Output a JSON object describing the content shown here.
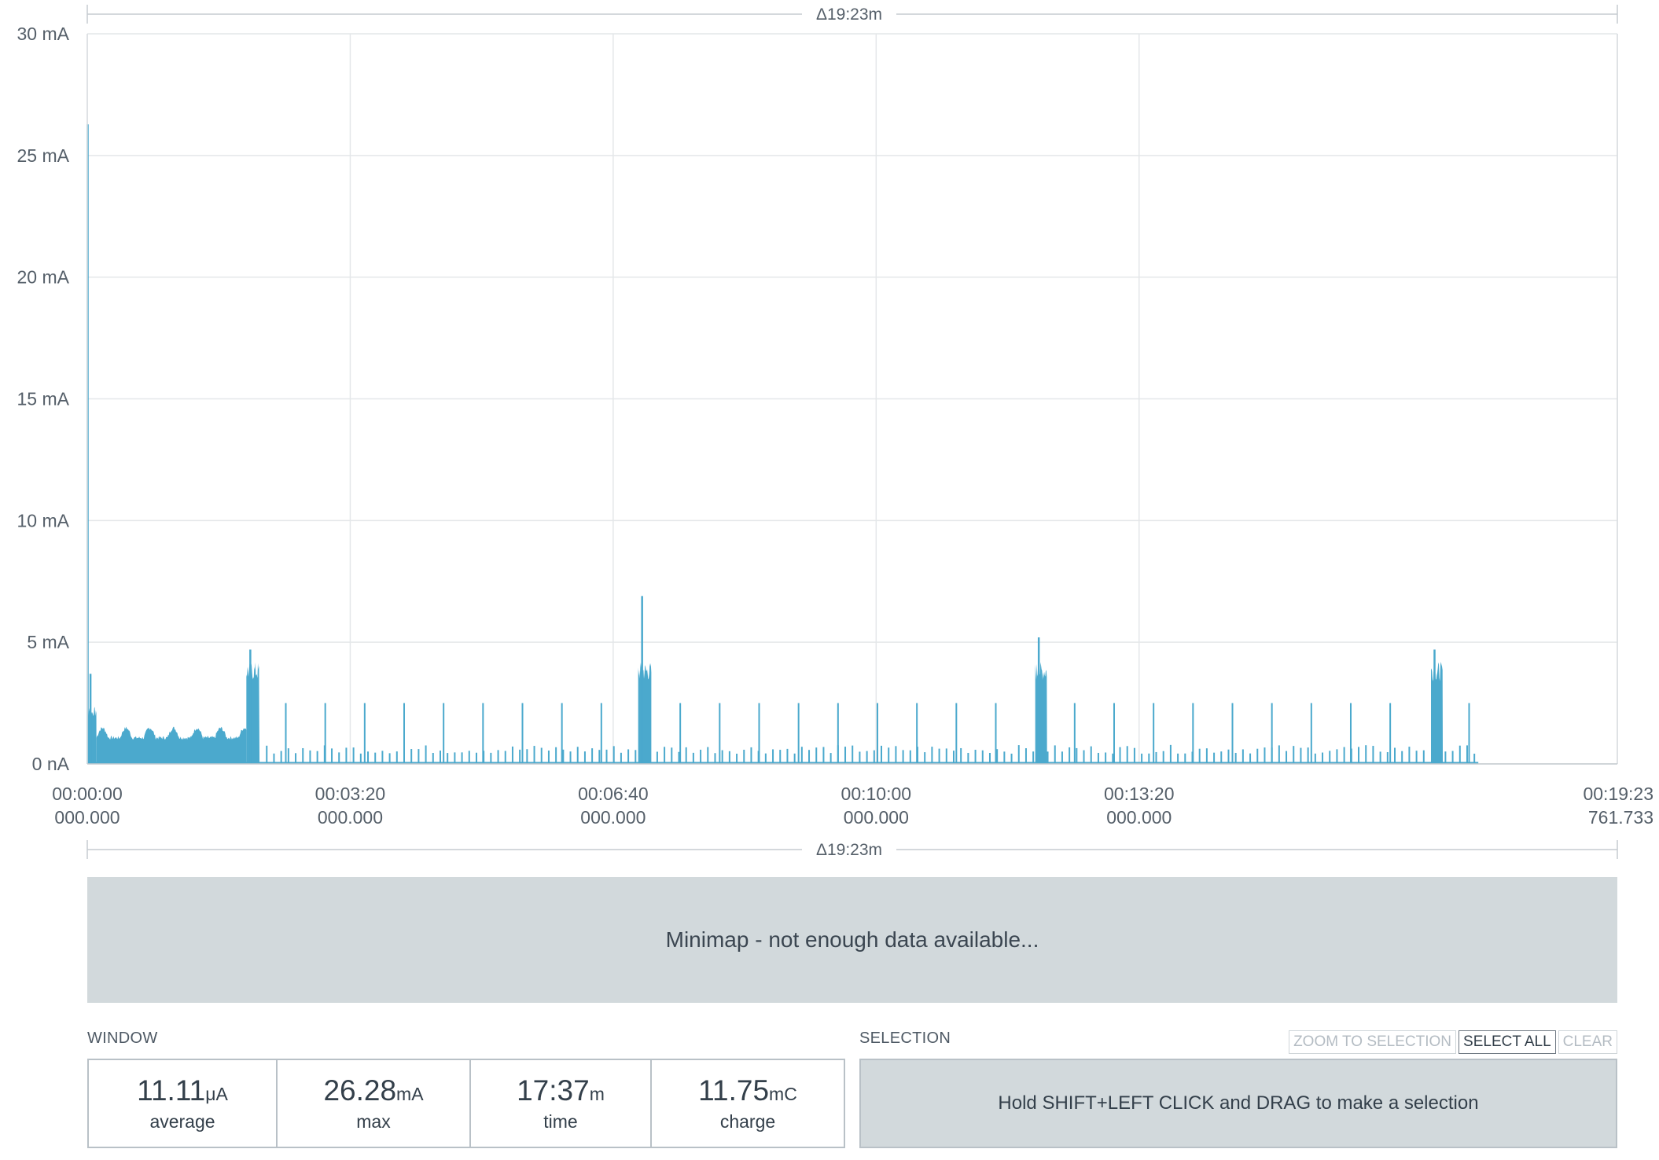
{
  "chart_data": {
    "type": "area",
    "color": "#4ba9cd",
    "y_unit": "mA",
    "ylim": [
      0,
      30
    ],
    "yticks": [
      "0 nA",
      "5 mA",
      "10 mA",
      "15 mA",
      "20 mA",
      "25 mA",
      "30 mA"
    ],
    "xlim_seconds": [
      0,
      1163.733
    ],
    "xticks": [
      {
        "t": 0,
        "time": "00:00:00",
        "ms": "000.000"
      },
      {
        "t": 200,
        "time": "00:03:20",
        "ms": "000.000"
      },
      {
        "t": 400,
        "time": "00:06:40",
        "ms": "000.000"
      },
      {
        "t": 600,
        "time": "00:10:00",
        "ms": "000.000"
      },
      {
        "t": 800,
        "time": "00:13:20",
        "ms": "000.000"
      },
      {
        "t": 1163.733,
        "time": "00:19:23",
        "ms": "761.733"
      }
    ],
    "delta_label": "Δ19:23m",
    "grid": true,
    "bursts": [
      {
        "t0": 0.5,
        "t1": 7,
        "level": 2.3,
        "peak": 3.7
      },
      {
        "t0": 121,
        "t1": 131,
        "level": 4.0,
        "peak": 4.7
      },
      {
        "t0": 419,
        "t1": 429,
        "level": 4.0,
        "peak": 6.9
      },
      {
        "t0": 721,
        "t1": 730,
        "level": 4.0,
        "peak": 5.2
      },
      {
        "t0": 1022,
        "t1": 1031,
        "level": 4.0,
        "peak": 4.7
      }
    ],
    "initial_spike": {
      "t": 0.3,
      "value": 26.28
    },
    "idle_band": {
      "t0": 7,
      "t1": 121,
      "base": 1.0,
      "hump": 0.4
    },
    "periodic_spikes": {
      "t0": 151,
      "t1": 1052,
      "period": 30,
      "value": 2.5
    },
    "small_spikes_value": 0.6,
    "data_end_t": 1058
  },
  "minimap": {
    "text": "Minimap - not enough data available..."
  },
  "window": {
    "label": "WINDOW",
    "stats": [
      {
        "value": "11.11",
        "unit": "μA",
        "label": "average"
      },
      {
        "value": "26.28",
        "unit": "mA",
        "label": "max"
      },
      {
        "value": "17:37",
        "unit": "m",
        "label": "time"
      },
      {
        "value": "11.75",
        "unit": "mC",
        "label": "charge"
      }
    ]
  },
  "selection": {
    "label": "SELECTION",
    "buttons": {
      "zoom": "ZOOM TO SELECTION",
      "select_all": "SELECT ALL",
      "clear": "CLEAR"
    },
    "hint": "Hold SHIFT+LEFT CLICK and DRAG to make a selection"
  }
}
